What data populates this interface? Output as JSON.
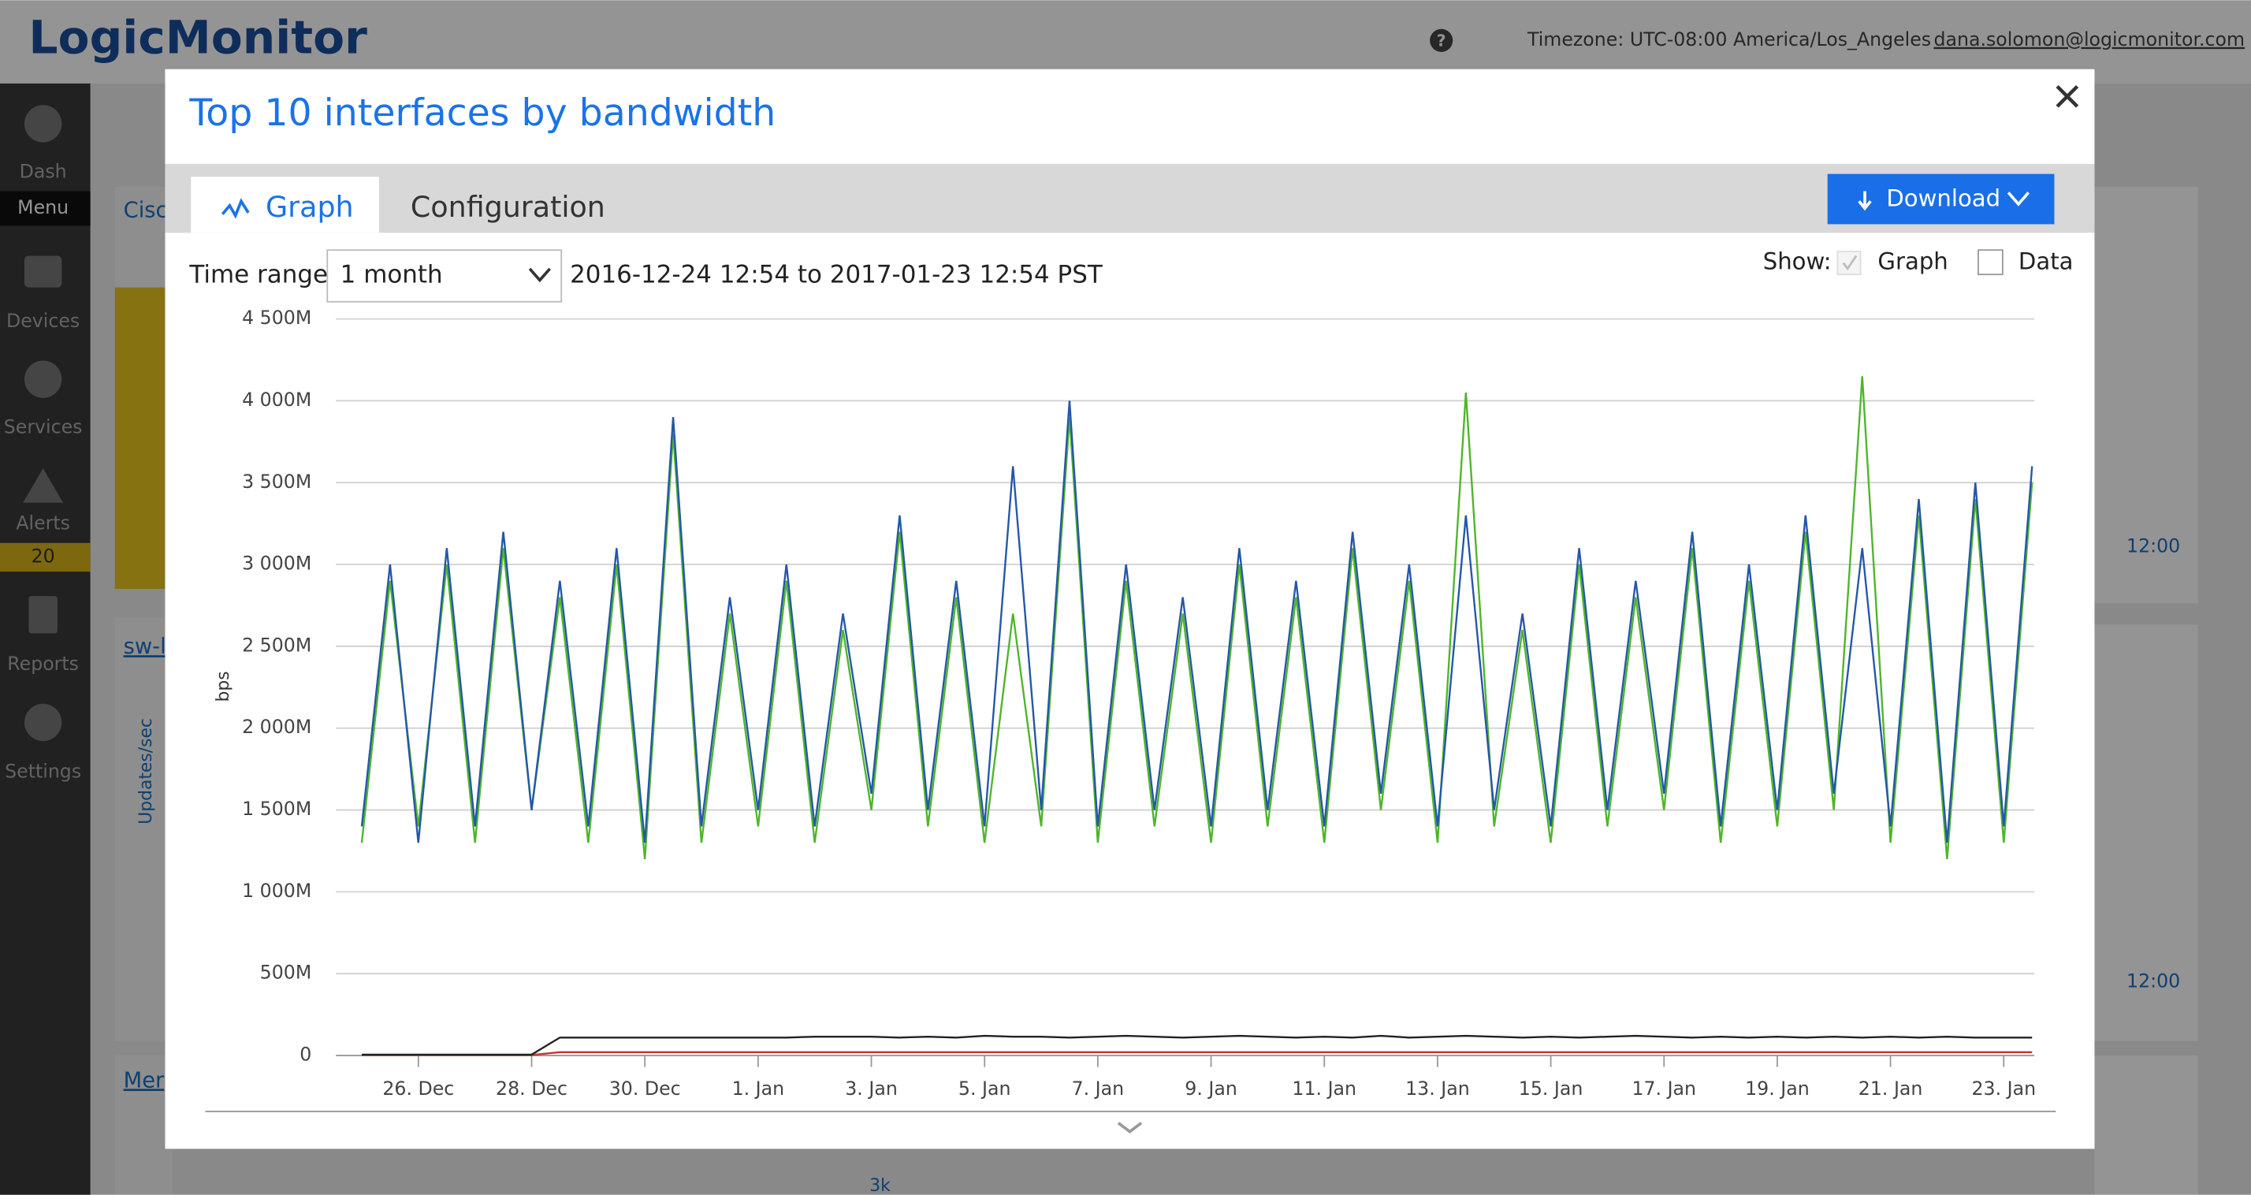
{
  "header": {
    "logo": "LogicMonitor",
    "help": "?",
    "timezone": "Timezone: UTC-08:00 America/Los_Angeles",
    "user": "dana.solomon@logicmonitor.com"
  },
  "sidebar": {
    "items": [
      "Dash",
      "Menu",
      "Devices",
      "Services",
      "Alerts",
      "20",
      "Reports",
      "Settings"
    ]
  },
  "background": {
    "widget_titles": [
      "Cisc",
      "sw-l",
      "Mer"
    ],
    "axis_label": "Updates/sec",
    "time_labels": [
      "12:00",
      "12:00"
    ],
    "tick": "3k"
  },
  "modal": {
    "title": "Top 10 interfaces by bandwidth",
    "tabs": [
      "Graph",
      "Configuration"
    ],
    "download": "Download",
    "time_range_label": "Time range:",
    "time_range_value": "1 month",
    "date_range": "2016-12-24 12:54 to 2017-01-23 12:54 PST",
    "show_label": "Show:",
    "show_options": [
      "Graph",
      "Data"
    ]
  },
  "chart_data": {
    "type": "line",
    "y_label": "bps",
    "categories": [
      null,
      null,
      "26. Dec",
      null,
      null,
      null,
      "28. Dec",
      null,
      null,
      null,
      "30. Dec",
      null,
      null,
      null,
      "1. Jan",
      null,
      null,
      null,
      "3. Jan",
      null,
      null,
      null,
      "5. Jan",
      null,
      null,
      null,
      "7. Jan",
      null,
      null,
      null,
      "9. Jan",
      null,
      null,
      null,
      "11. Jan",
      null,
      null,
      null,
      "13. Jan",
      null,
      null,
      null,
      "15. Jan",
      null,
      null,
      null,
      "17. Jan",
      null,
      null,
      null,
      "19. Jan",
      null,
      null,
      null,
      "21. Jan",
      null,
      null,
      null,
      "23. Jan",
      null
    ],
    "series": [
      {
        "color": "#2457a8",
        "values": [
          1400000000.0,
          3000000000.0,
          1300000000.0,
          3100000000.0,
          1400000000.0,
          3200000000.0,
          1500000000.0,
          2900000000.0,
          1400000000.0,
          3100000000.0,
          1300000000.0,
          3900000000.0,
          1400000000.0,
          2800000000.0,
          1500000000.0,
          3000000000.0,
          1400000000.0,
          2700000000.0,
          1600000000.0,
          3300000000.0,
          1500000000.0,
          2900000000.0,
          1400000000.0,
          3600000000.0,
          1500000000.0,
          4000000000.0,
          1400000000.0,
          3000000000.0,
          1500000000.0,
          2800000000.0,
          1400000000.0,
          3100000000.0,
          1500000000.0,
          2900000000.0,
          1400000000.0,
          3200000000.0,
          1600000000.0,
          3000000000.0,
          1400000000.0,
          3300000000.0,
          1500000000.0,
          2700000000.0,
          1400000000.0,
          3100000000.0,
          1500000000.0,
          2900000000.0,
          1600000000.0,
          3200000000.0,
          1400000000.0,
          3000000000.0,
          1500000000.0,
          3300000000.0,
          1600000000.0,
          3100000000.0,
          1400000000.0,
          3400000000.0,
          1300000000.0,
          3500000000.0,
          1400000000.0,
          3600000000.0
        ]
      },
      {
        "color": "#4fb52a",
        "values": [
          1300000000.0,
          2900000000.0,
          1400000000.0,
          3000000000.0,
          1300000000.0,
          3100000000.0,
          1500000000.0,
          2800000000.0,
          1300000000.0,
          3000000000.0,
          1200000000.0,
          3800000000.0,
          1300000000.0,
          2700000000.0,
          1400000000.0,
          2900000000.0,
          1300000000.0,
          2600000000.0,
          1500000000.0,
          3200000000.0,
          1400000000.0,
          2800000000.0,
          1300000000.0,
          2700000000.0,
          1400000000.0,
          3900000000.0,
          1300000000.0,
          2900000000.0,
          1400000000.0,
          2700000000.0,
          1300000000.0,
          3000000000.0,
          1400000000.0,
          2800000000.0,
          1300000000.0,
          3100000000.0,
          1500000000.0,
          2900000000.0,
          1300000000.0,
          4050000000.0,
          1400000000.0,
          2600000000.0,
          1300000000.0,
          3000000000.0,
          1400000000.0,
          2800000000.0,
          1500000000.0,
          3100000000.0,
          1300000000.0,
          2900000000.0,
          1400000000.0,
          3200000000.0,
          1500000000.0,
          4150000000.0,
          1300000000.0,
          3300000000.0,
          1200000000.0,
          3400000000.0,
          1300000000.0,
          3500000000.0
        ]
      },
      {
        "color": "#222222",
        "values": [
          5000000.0,
          5000000.0,
          5000000.0,
          5000000.0,
          5000000.0,
          5000000.0,
          5000000.0,
          110000000.0,
          110000000.0,
          110000000.0,
          110000000.0,
          110000000.0,
          110000000.0,
          110000000.0,
          110000000.0,
          110000000.0,
          115000000.0,
          115000000.0,
          115000000.0,
          110000000.0,
          115000000.0,
          110000000.0,
          120000000.0,
          115000000.0,
          115000000.0,
          110000000.0,
          115000000.0,
          120000000.0,
          115000000.0,
          110000000.0,
          115000000.0,
          120000000.0,
          115000000.0,
          110000000.0,
          115000000.0,
          110000000.0,
          120000000.0,
          110000000.0,
          115000000.0,
          120000000.0,
          115000000.0,
          110000000.0,
          115000000.0,
          110000000.0,
          115000000.0,
          120000000.0,
          115000000.0,
          110000000.0,
          115000000.0,
          110000000.0,
          115000000.0,
          110000000.0,
          115000000.0,
          110000000.0,
          115000000.0,
          110000000.0,
          115000000.0,
          110000000.0,
          110000000.0,
          110000000.0
        ]
      },
      {
        "color": "#c0392b",
        "values": [
          3000000.0,
          3000000.0,
          3000000.0,
          3000000.0,
          3000000.0,
          3000000.0,
          3000000.0,
          20000000.0,
          20000000.0,
          20000000.0,
          20000000.0,
          20000000.0,
          20000000.0,
          20000000.0,
          20000000.0,
          20000000.0,
          20000000.0,
          20000000.0,
          20000000.0,
          20000000.0,
          20000000.0,
          20000000.0,
          20000000.0,
          20000000.0,
          20000000.0,
          20000000.0,
          20000000.0,
          20000000.0,
          20000000.0,
          20000000.0,
          20000000.0,
          20000000.0,
          20000000.0,
          20000000.0,
          20000000.0,
          20000000.0,
          20000000.0,
          20000000.0,
          20000000.0,
          20000000.0,
          20000000.0,
          20000000.0,
          20000000.0,
          20000000.0,
          20000000.0,
          20000000.0,
          20000000.0,
          20000000.0,
          20000000.0,
          20000000.0,
          20000000.0,
          20000000.0,
          20000000.0,
          20000000.0,
          20000000.0,
          20000000.0,
          20000000.0,
          20000000.0,
          20000000.0,
          20000000.0
        ]
      }
    ],
    "ylim": [
      0,
      4500000000.0
    ],
    "yticks": [
      0,
      {
        "value": 500000000.0,
        "label": "500M"
      },
      {
        "value": 1000000000.0,
        "label": "1 000M"
      },
      {
        "value": 1500000000.0,
        "label": "1 500M"
      },
      {
        "value": 2000000000.0,
        "label": "2 000M"
      },
      {
        "value": 2500000000.0,
        "label": "2 500M"
      },
      {
        "value": 3000000000.0,
        "label": "3 000M"
      },
      {
        "value": 3500000000.0,
        "label": "3 500M"
      },
      {
        "value": 4000000000.0,
        "label": "4 000M"
      },
      {
        "value": 4500000000.0,
        "label": "4 500M"
      }
    ],
    "grid": true
  }
}
